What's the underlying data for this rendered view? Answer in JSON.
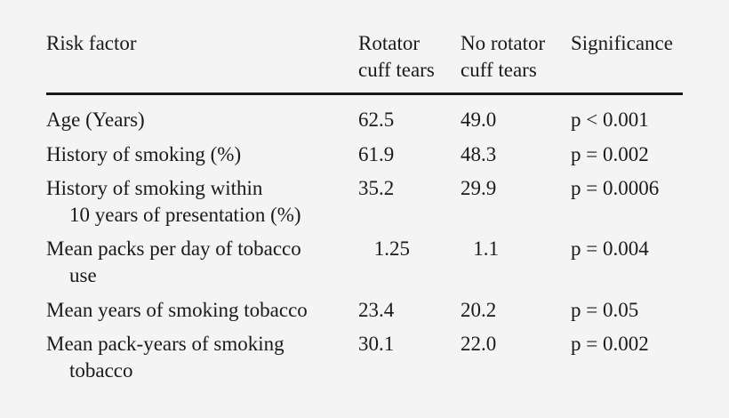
{
  "headers": {
    "risk_factor": "Risk factor",
    "rotator_line1": "Rotator",
    "rotator_line2": "cuff tears",
    "norotator_line1": "No rotator",
    "norotator_line2": "cuff tears",
    "significance": "Significance"
  },
  "rows": [
    {
      "label1": "Age (Years)",
      "label2": "",
      "rotator": "62.5",
      "no_rotator": "49.0",
      "significance": "p < 0.001"
    },
    {
      "label1": "History of smoking (%)",
      "label2": "",
      "rotator": "61.9",
      "no_rotator": "48.3",
      "significance": "p = 0.002"
    },
    {
      "label1": "History of smoking within",
      "label2": "10 years of presentation (%)",
      "rotator": "35.2",
      "no_rotator": "29.9",
      "significance": "p = 0.0006"
    },
    {
      "label1": "Mean packs per day of tobacco",
      "label2": "use",
      "rotator": "1.25",
      "no_rotator": "1.1",
      "significance": "p = 0.004"
    },
    {
      "label1": "Mean years of smoking tobacco",
      "label2": "",
      "rotator": "23.4",
      "no_rotator": "20.2",
      "significance": "p = 0.05"
    },
    {
      "label1": "Mean pack-years of smoking",
      "label2": "tobacco",
      "rotator": "30.1",
      "no_rotator": "22.0",
      "significance": "p = 0.002"
    }
  ]
}
